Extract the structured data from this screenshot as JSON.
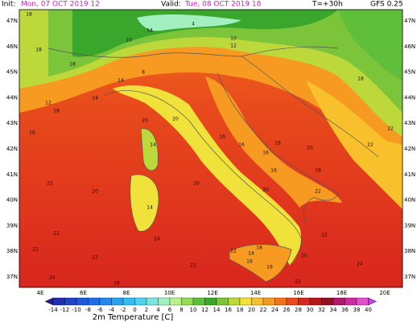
{
  "header": {
    "init_label": "Init:",
    "init_value": "Mon, 07 OCT 2019  12",
    "valid_label": "Valid:",
    "valid_value": "Tue, 08 OCT 2019  18",
    "lead": "T=+30h",
    "model": "GFS 0.25"
  },
  "map": {
    "lon_labels": [
      "4E",
      "6E",
      "8E",
      "10E",
      "12E",
      "14E",
      "16E",
      "18E",
      "20E"
    ],
    "lat_labels": [
      "47N",
      "46N",
      "45N",
      "44N",
      "43N",
      "42N",
      "41N",
      "40N",
      "39N",
      "38N",
      "37N"
    ],
    "stations": [
      "18",
      "18",
      "4",
      "10",
      "12",
      "14",
      "10",
      "12",
      "16",
      "8",
      "14",
      "14",
      "18",
      "18",
      "20",
      "20",
      "16",
      "16",
      "16",
      "18",
      "16",
      "20",
      "14",
      "14",
      "22",
      "20",
      "20",
      "20",
      "22",
      "22",
      "18",
      "22",
      "22",
      "18",
      "22",
      "22",
      "22",
      "18",
      "22",
      "24",
      "20",
      "22",
      "14",
      "16",
      "18",
      "16",
      "22",
      "24",
      "24"
    ]
  },
  "colorbar": {
    "title": "2m Temperature [C]",
    "ticks": [
      -14,
      -12,
      -10,
      -8,
      -6,
      -4,
      -2,
      0,
      2,
      4,
      6,
      8,
      10,
      12,
      14,
      16,
      18,
      20,
      22,
      24,
      26,
      28,
      30,
      32,
      34,
      36,
      38,
      40
    ],
    "colors": [
      "#2a1a8c",
      "#1f2fb0",
      "#1e44c8",
      "#2058dc",
      "#1f6ee8",
      "#2488f0",
      "#2aa2f2",
      "#35bcf0",
      "#4fd2ea",
      "#7ae4dc",
      "#a2efc0",
      "#b9ef8c",
      "#94dc52",
      "#5fbf3a",
      "#3aa62c",
      "#7cc43a",
      "#bcd83a",
      "#f0e23a",
      "#f8c12c",
      "#f79a22",
      "#f2711c",
      "#e84a1c",
      "#d8261e",
      "#b8141c",
      "#921022",
      "#b0186a",
      "#d02aa0",
      "#e050c8",
      "#c040e0"
    ]
  }
}
